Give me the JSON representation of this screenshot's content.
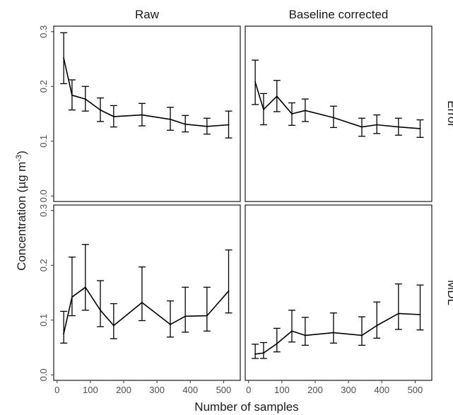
{
  "chart_data": {
    "type": "line",
    "layout": "2x2 facet grid",
    "facet_columns": [
      "Raw",
      "Baseline corrected"
    ],
    "facet_rows": [
      "Error",
      "MDL"
    ],
    "xlabel": "Number of samples",
    "ylabel_parts": {
      "main": "Concentration (µg m",
      "sup": "-3",
      "end": ")"
    },
    "xlim": [
      -10,
      550
    ],
    "ylim": [
      -0.01,
      0.31
    ],
    "xticks": [
      0,
      100,
      200,
      300,
      400,
      500
    ],
    "xtick_labels": [
      "0",
      "100",
      "200",
      "300",
      "400",
      "500"
    ],
    "yticks": [
      0.0,
      0.1,
      0.2,
      0.3
    ],
    "ytick_labels": [
      "0.0",
      "0.1",
      "0.2",
      "0.3"
    ],
    "grid": false,
    "line_color": "#000000",
    "panels": [
      {
        "column": "Raw",
        "row": "Error",
        "x": [
          20,
          45,
          85,
          130,
          170,
          255,
          340,
          385,
          450,
          515
        ],
        "y": [
          0.252,
          0.184,
          0.177,
          0.157,
          0.145,
          0.148,
          0.14,
          0.131,
          0.127,
          0.13
        ],
        "y_low": [
          0.205,
          0.157,
          0.155,
          0.136,
          0.126,
          0.128,
          0.12,
          0.117,
          0.113,
          0.106
        ],
        "y_high": [
          0.298,
          0.212,
          0.2,
          0.179,
          0.165,
          0.169,
          0.162,
          0.147,
          0.142,
          0.155
        ]
      },
      {
        "column": "Baseline corrected",
        "row": "Error",
        "x": [
          20,
          45,
          85,
          130,
          170,
          255,
          340,
          385,
          450,
          515
        ],
        "y": [
          0.208,
          0.158,
          0.182,
          0.15,
          0.156,
          0.143,
          0.126,
          0.13,
          0.126,
          0.123
        ],
        "y_low": [
          0.167,
          0.13,
          0.154,
          0.129,
          0.136,
          0.125,
          0.109,
          0.114,
          0.111,
          0.107
        ],
        "y_high": [
          0.248,
          0.187,
          0.211,
          0.17,
          0.177,
          0.164,
          0.142,
          0.148,
          0.142,
          0.139
        ]
      },
      {
        "column": "Raw",
        "row": "MDL",
        "x": [
          20,
          45,
          85,
          130,
          170,
          255,
          340,
          385,
          450,
          515
        ],
        "y": [
          0.075,
          0.142,
          0.16,
          0.118,
          0.09,
          0.132,
          0.092,
          0.107,
          0.108,
          0.153
        ],
        "y_low": [
          0.058,
          0.108,
          0.118,
          0.088,
          0.066,
          0.099,
          0.069,
          0.078,
          0.08,
          0.113
        ],
        "y_high": [
          0.116,
          0.215,
          0.238,
          0.172,
          0.13,
          0.197,
          0.135,
          0.16,
          0.16,
          0.228
        ]
      },
      {
        "column": "Baseline corrected",
        "row": "MDL",
        "x": [
          20,
          45,
          85,
          130,
          170,
          255,
          340,
          385,
          450,
          515
        ],
        "y": [
          0.038,
          0.04,
          0.057,
          0.08,
          0.072,
          0.077,
          0.072,
          0.09,
          0.112,
          0.11
        ],
        "y_low": [
          0.03,
          0.03,
          0.042,
          0.06,
          0.054,
          0.058,
          0.054,
          0.067,
          0.083,
          0.082
        ],
        "y_high": [
          0.056,
          0.059,
          0.085,
          0.118,
          0.105,
          0.113,
          0.106,
          0.133,
          0.166,
          0.164
        ]
      }
    ]
  }
}
